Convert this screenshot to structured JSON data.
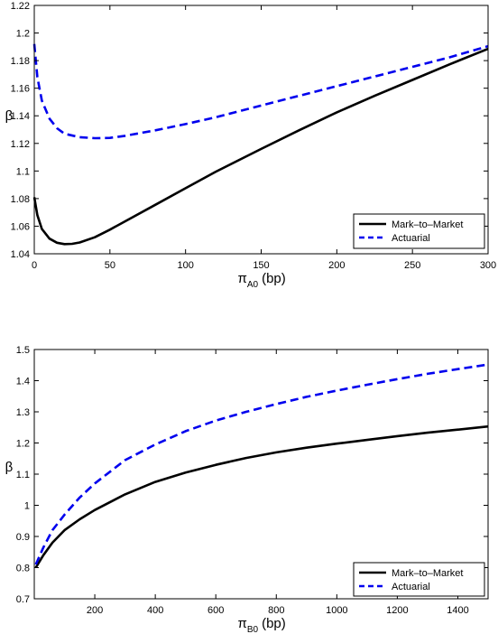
{
  "chart_data": [
    {
      "type": "line",
      "xlabel": {
        "symbol": "π",
        "subscript": "A0",
        "rest": "(bp)"
      },
      "ylabel": "β",
      "xlim": [
        0,
        300
      ],
      "ylim": [
        1.04,
        1.22
      ],
      "xticks": [
        "0",
        "50",
        "100",
        "150",
        "200",
        "250",
        "300"
      ],
      "yticks": [
        "1.04",
        "1.06",
        "1.08",
        "1.1",
        "1.12",
        "1.14",
        "1.16",
        "1.18",
        "1.2",
        "1.22"
      ],
      "legend_position": "bottom-right",
      "series": [
        {
          "name": "Mark–to–Market",
          "color": "#000000",
          "style": "solid",
          "x": [
            0,
            2,
            5,
            10,
            15,
            20,
            25,
            30,
            40,
            50,
            60,
            80,
            100,
            120,
            150,
            175,
            200,
            225,
            250,
            275,
            300
          ],
          "y": [
            1.081,
            1.068,
            1.058,
            1.051,
            1.048,
            1.047,
            1.0472,
            1.0482,
            1.052,
            1.0575,
            1.0635,
            1.0755,
            1.0875,
            1.0995,
            1.116,
            1.1295,
            1.1425,
            1.1545,
            1.166,
            1.1775,
            1.1885
          ]
        },
        {
          "name": "Actuarial",
          "color": "#0000ee",
          "style": "dashed",
          "x": [
            0,
            2,
            5,
            10,
            15,
            20,
            30,
            40,
            50,
            60,
            80,
            100,
            120,
            150,
            175,
            200,
            225,
            250,
            275,
            300
          ],
          "y": [
            1.192,
            1.168,
            1.151,
            1.138,
            1.131,
            1.127,
            1.1245,
            1.1238,
            1.124,
            1.1255,
            1.1295,
            1.134,
            1.139,
            1.1475,
            1.1545,
            1.1615,
            1.1685,
            1.1755,
            1.1825,
            1.1905
          ]
        }
      ]
    },
    {
      "type": "line",
      "xlabel": {
        "symbol": "π",
        "subscript": "B0",
        "rest": "(bp)"
      },
      "ylabel": "β",
      "xlim": [
        0,
        1500
      ],
      "ylim": [
        0.7,
        1.5
      ],
      "xticks": [
        "200",
        "400",
        "600",
        "800",
        "1000",
        "1200",
        "1400"
      ],
      "xtick_values": [
        200,
        400,
        600,
        800,
        1000,
        1200,
        1400
      ],
      "yticks": [
        "0.7",
        "0.8",
        "0.9",
        "1",
        "1.1",
        "1.2",
        "1.3",
        "1.4",
        "1.5"
      ],
      "legend_position": "bottom-right",
      "series": [
        {
          "name": "Mark–to–Market",
          "color": "#000000",
          "style": "solid",
          "x": [
            5,
            30,
            60,
            100,
            150,
            200,
            300,
            400,
            500,
            600,
            700,
            800,
            900,
            1000,
            1100,
            1200,
            1300,
            1400,
            1500
          ],
          "y": [
            0.8,
            0.84,
            0.88,
            0.92,
            0.955,
            0.985,
            1.035,
            1.075,
            1.105,
            1.13,
            1.152,
            1.17,
            1.185,
            1.198,
            1.21,
            1.222,
            1.233,
            1.243,
            1.253
          ]
        },
        {
          "name": "Actuarial",
          "color": "#0000ee",
          "style": "dashed",
          "x": [
            5,
            30,
            60,
            100,
            150,
            200,
            300,
            400,
            500,
            600,
            700,
            800,
            900,
            1000,
            1100,
            1200,
            1300,
            1400,
            1500
          ],
          "y": [
            0.81,
            0.865,
            0.92,
            0.97,
            1.025,
            1.07,
            1.145,
            1.195,
            1.238,
            1.272,
            1.3,
            1.325,
            1.348,
            1.368,
            1.387,
            1.405,
            1.422,
            1.437,
            1.452
          ]
        }
      ]
    }
  ]
}
